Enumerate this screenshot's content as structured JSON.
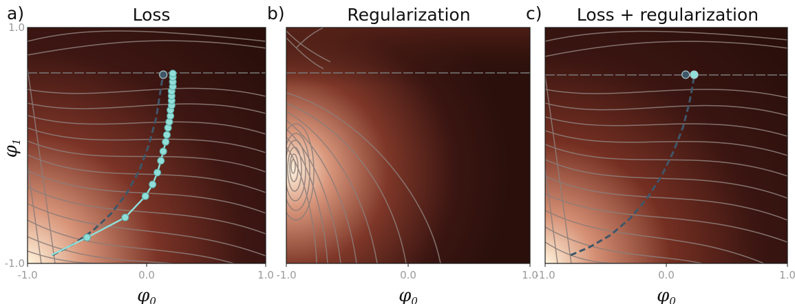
{
  "colors": {
    "background_dark": "#2a0f0b",
    "background_mid": "#6a2a1f",
    "background_warm": "#c07a62",
    "background_light": "#fff4dc",
    "contour": "#8d7d78",
    "path_dark": "#3f5668",
    "path_light": "#8fded8"
  },
  "chart_data": [
    {
      "type": "contour",
      "panel_label": "a)",
      "title": "Loss",
      "xlabel": "φ0",
      "ylabel": "φ1",
      "xlim": [
        -1.0,
        1.0
      ],
      "ylim": [
        -1.0,
        1.0
      ],
      "xticks": [
        "-1.0",
        "0.0",
        "1.0"
      ],
      "yticks": [
        "-1.0",
        "1.0"
      ],
      "horizontal_line_y": 0.6,
      "series": [
        {
          "style": "dashed",
          "points": [
            [
              -0.79,
              -0.93
            ],
            [
              -0.62,
              -0.84
            ],
            [
              -0.45,
              -0.72
            ],
            [
              -0.3,
              -0.58
            ],
            [
              -0.17,
              -0.41
            ],
            [
              -0.06,
              -0.21
            ],
            [
              0.02,
              0.01
            ],
            [
              0.08,
              0.23
            ],
            [
              0.11,
              0.42
            ],
            [
              0.13,
              0.55
            ],
            [
              0.14,
              0.6
            ]
          ]
        },
        {
          "style": "markers",
          "points": [
            [
              -0.8,
              -0.93
            ],
            [
              -0.5,
              -0.78
            ],
            [
              -0.18,
              -0.61
            ],
            [
              -0.01,
              -0.43
            ],
            [
              0.05,
              -0.33
            ],
            [
              0.09,
              -0.23
            ],
            [
              0.12,
              -0.13
            ],
            [
              0.14,
              -0.05
            ],
            [
              0.16,
              0.03
            ],
            [
              0.17,
              0.09
            ],
            [
              0.18,
              0.15
            ],
            [
              0.19,
              0.2
            ],
            [
              0.2,
              0.25
            ],
            [
              0.2,
              0.3
            ],
            [
              0.21,
              0.34
            ],
            [
              0.21,
              0.38
            ],
            [
              0.21,
              0.42
            ],
            [
              0.21,
              0.46
            ],
            [
              0.22,
              0.5
            ],
            [
              0.22,
              0.54
            ],
            [
              0.22,
              0.58
            ],
            [
              0.22,
              0.61
            ]
          ]
        }
      ]
    },
    {
      "type": "contour",
      "panel_label": "b)",
      "title": "Regularization",
      "xlabel": "φ0",
      "ylabel": "",
      "xlim": [
        -1.0,
        1.0
      ],
      "ylim": [
        -1.0,
        1.0
      ],
      "xticks": [
        "-1.0",
        "0.0",
        "1.0"
      ],
      "yticks": [],
      "horizontal_line_y": 0.6,
      "series": []
    },
    {
      "type": "contour",
      "panel_label": "c)",
      "title": "Loss + regularization",
      "xlabel": "φ0",
      "ylabel": "",
      "xlim": [
        -1.0,
        1.0
      ],
      "ylim": [
        -1.0,
        1.0
      ],
      "xticks": [
        "-1.0",
        "0.0",
        "1.0"
      ],
      "yticks": [],
      "horizontal_line_y": 0.6,
      "series": [
        {
          "style": "dashed",
          "points": [
            [
              -0.79,
              -0.93
            ],
            [
              -0.63,
              -0.86
            ],
            [
              -0.46,
              -0.76
            ],
            [
              -0.3,
              -0.62
            ],
            [
              -0.16,
              -0.45
            ],
            [
              -0.04,
              -0.26
            ],
            [
              0.06,
              -0.05
            ],
            [
              0.14,
              0.16
            ],
            [
              0.19,
              0.36
            ],
            [
              0.22,
              0.52
            ],
            [
              0.23,
              0.6
            ]
          ]
        },
        {
          "style": "endpoints",
          "points": [
            [
              0.16,
              0.6
            ],
            [
              0.23,
              0.6
            ]
          ]
        }
      ]
    }
  ]
}
